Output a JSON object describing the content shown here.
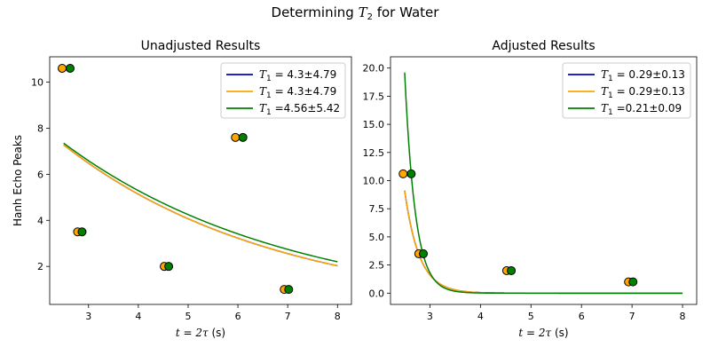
{
  "figure": {
    "suptitle_prefix": "Determining ",
    "suptitle_var": "T",
    "suptitle_sub": "2",
    "suptitle_suffix": " for Water"
  },
  "chart_data": [
    {
      "type": "line",
      "title": "Unadjusted Results",
      "xlabel_var": "t = 2τ",
      "xlabel_unit": " (s)",
      "ylabel": "Hanh Echo Peaks",
      "xlim": [
        2.22,
        8.28
      ],
      "ylim": [
        0.35,
        11.1
      ],
      "xticks": [
        3,
        4,
        5,
        6,
        7,
        8
      ],
      "yticks": [
        2,
        4,
        6,
        8,
        10
      ],
      "legend_position": "upper right",
      "grid": false,
      "series": [
        {
          "label_var": "T",
          "label_sub": "1",
          "label_value": " = 4.3±4.79",
          "color": "#0000cc",
          "x_start": 2.5,
          "x_end": 8.0,
          "amplitude": 13.02,
          "decay": 4.3
        },
        {
          "label_var": "T",
          "label_sub": "1",
          "label_value": " = 4.3±4.79",
          "color": "#ffa500",
          "x_start": 2.5,
          "x_end": 8.0,
          "amplitude": 13.02,
          "decay": 4.3
        },
        {
          "label_var": "T",
          "label_sub": "1",
          "label_value": " =4.56±5.42",
          "color": "#008000",
          "x_start": 2.5,
          "x_end": 8.0,
          "amplitude": 12.72,
          "decay": 4.56
        }
      ],
      "points": [
        {
          "x": 2.47,
          "y": 10.6,
          "color": "#ffa500"
        },
        {
          "x": 2.63,
          "y": 10.6,
          "color": "#008000"
        },
        {
          "x": 2.78,
          "y": 3.5,
          "color": "#ffa500"
        },
        {
          "x": 2.87,
          "y": 3.5,
          "color": "#008000"
        },
        {
          "x": 4.52,
          "y": 2.0,
          "color": "#ffa500"
        },
        {
          "x": 4.61,
          "y": 2.0,
          "color": "#008000"
        },
        {
          "x": 5.95,
          "y": 7.6,
          "color": "#ffa500"
        },
        {
          "x": 6.1,
          "y": 7.6,
          "color": "#008000"
        },
        {
          "x": 6.93,
          "y": 1.0,
          "color": "#ffa500"
        },
        {
          "x": 7.02,
          "y": 1.0,
          "color": "#008000"
        }
      ]
    },
    {
      "type": "line",
      "title": "Adjusted Results",
      "xlabel_var": "t = 2τ",
      "xlabel_unit": " (s)",
      "ylabel": "",
      "xlim": [
        2.22,
        8.28
      ],
      "ylim": [
        -1.0,
        21.0
      ],
      "xticks": [
        3,
        4,
        5,
        6,
        7,
        8
      ],
      "yticks": [
        0.0,
        2.5,
        5.0,
        7.5,
        10.0,
        12.5,
        15.0,
        17.5,
        20.0
      ],
      "ytick_decimals": 1,
      "legend_position": "upper right",
      "grid": false,
      "series": [
        {
          "label_var": "T",
          "label_sub": "1",
          "label_value": " = 0.29±0.13",
          "color": "#0000cc",
          "x_start": 2.5,
          "x_end": 8.0,
          "amplitude": 50470,
          "decay": 0.29
        },
        {
          "label_var": "T",
          "label_sub": "1",
          "label_value": " = 0.29±0.13",
          "color": "#ffa500",
          "x_start": 2.5,
          "x_end": 8.0,
          "amplitude": 50470,
          "decay": 0.29
        },
        {
          "label_var": "T",
          "label_sub": "1",
          "label_value": " =0.21±0.09",
          "color": "#008000",
          "x_start": 2.5,
          "x_end": 8.0,
          "amplitude": 2900000.0,
          "decay": 0.21
        }
      ],
      "points": [
        {
          "x": 2.47,
          "y": 10.6,
          "color": "#ffa500"
        },
        {
          "x": 2.63,
          "y": 10.6,
          "color": "#008000"
        },
        {
          "x": 2.78,
          "y": 3.5,
          "color": "#ffa500"
        },
        {
          "x": 2.87,
          "y": 3.5,
          "color": "#008000"
        },
        {
          "x": 4.52,
          "y": 2.0,
          "color": "#ffa500"
        },
        {
          "x": 4.61,
          "y": 2.0,
          "color": "#008000"
        },
        {
          "x": 6.93,
          "y": 1.0,
          "color": "#ffa500"
        },
        {
          "x": 7.02,
          "y": 1.0,
          "color": "#008000"
        }
      ]
    }
  ]
}
